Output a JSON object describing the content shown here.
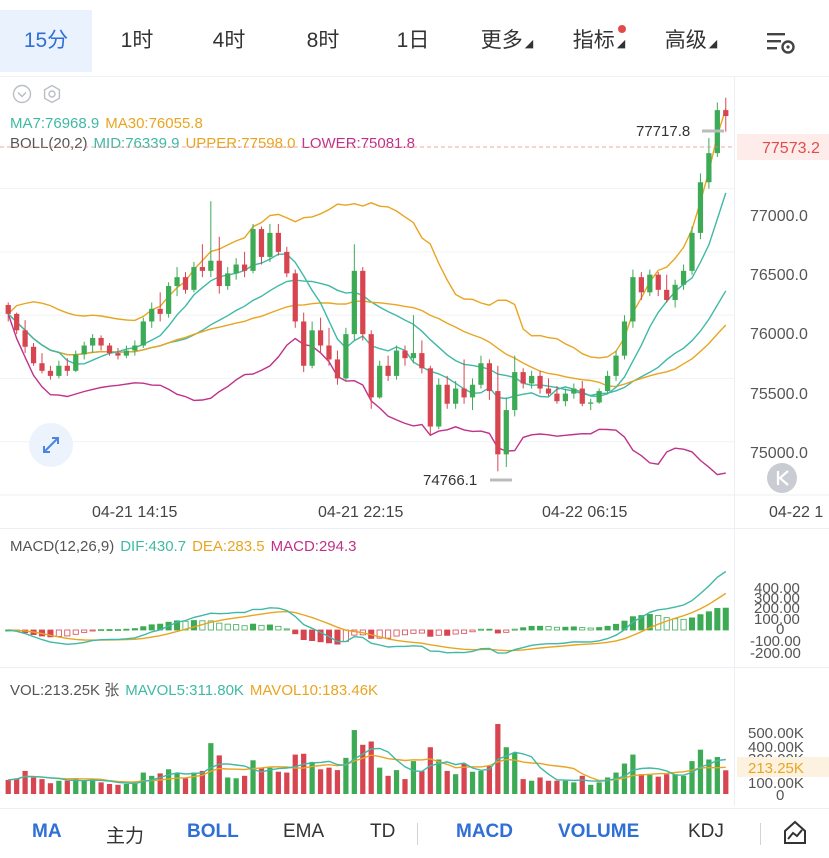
{
  "tabs": {
    "items": [
      "15分",
      "1时",
      "4时",
      "8时",
      "1日",
      "更多",
      "指标",
      "高级"
    ],
    "active": "15分"
  },
  "main": {
    "ma_legend": {
      "ma7": "MA7:76968.9",
      "ma30": "MA30:76055.8"
    },
    "boll_legend": {
      "name": "BOLL(20,2)",
      "mid": "MID:76339.9",
      "upper": "UPPER:77598.0",
      "lower": "LOWER:75081.8"
    },
    "price_axis": [
      "77000.0",
      "76500.0",
      "76000.0",
      "75500.0",
      "75000.0"
    ],
    "current_price": "77573.2",
    "high_label": "77717.8",
    "low_label": "74766.1",
    "time_axis": [
      "04-21 14:15",
      "04-21 22:15",
      "04-22 06:15",
      "04-22 1"
    ]
  },
  "macd": {
    "legend": {
      "name": "MACD(12,26,9)",
      "dif": "DIF:430.7",
      "dea": "DEA:283.5",
      "macd": "MACD:294.3"
    },
    "axis": [
      "400.00",
      "300.00",
      "200.00",
      "100.00",
      "0",
      "-100.00",
      "-200.00"
    ]
  },
  "volume": {
    "legend": {
      "vol": "VOL:213.25K 张",
      "mavol5": "MAVOL5:311.80K",
      "mavol10": "MAVOL10:183.46K"
    },
    "axis": [
      "500.00K",
      "400.00K",
      "300.00K",
      "213.25K",
      "100.00K",
      "0"
    ]
  },
  "bottom_bar": {
    "items": [
      "MA",
      "主力",
      "BOLL",
      "EMA",
      "TD",
      "MACD",
      "VOLUME",
      "KDJ"
    ],
    "active": [
      "MA",
      "BOLL",
      "MACD",
      "VOLUME"
    ]
  },
  "colors": {
    "up": "#3daa55",
    "down": "#d64550",
    "accent": "#2f6fd6",
    "ma7": "#3fb9a5",
    "ma30": "#e9a521",
    "lower": "#c0318a",
    "upper": "#e9a521",
    "price_tag": "#e24b4b"
  },
  "chart_data": {
    "type": "candlestick",
    "title": "",
    "price_range": [
      74650,
      77850
    ],
    "interval": "15m",
    "time_ticks": [
      "04-21 14:15",
      "04-21 22:15",
      "04-22 06:15"
    ],
    "candles": [
      [
        76080,
        76100,
        75950,
        76010
      ],
      [
        76010,
        76020,
        75850,
        75880
      ],
      [
        75880,
        75960,
        75700,
        75750
      ],
      [
        75750,
        75780,
        75600,
        75620
      ],
      [
        75620,
        75700,
        75540,
        75560
      ],
      [
        75560,
        75600,
        75490,
        75520
      ],
      [
        75520,
        75640,
        75500,
        75600
      ],
      [
        75600,
        75660,
        75520,
        75560
      ],
      [
        75560,
        75720,
        75550,
        75690
      ],
      [
        75690,
        75790,
        75650,
        75760
      ],
      [
        75760,
        75850,
        75700,
        75820
      ],
      [
        75820,
        75840,
        75720,
        75760
      ],
      [
        75760,
        75780,
        75680,
        75700
      ],
      [
        75700,
        75740,
        75650,
        75680
      ],
      [
        75680,
        75760,
        75660,
        75720
      ],
      [
        75720,
        75800,
        75680,
        75760
      ],
      [
        75760,
        75980,
        75740,
        75950
      ],
      [
        75950,
        76100,
        75900,
        76050
      ],
      [
        76050,
        76180,
        75950,
        76010
      ],
      [
        76010,
        76260,
        75980,
        76230
      ],
      [
        76230,
        76380,
        76150,
        76300
      ],
      [
        76300,
        76340,
        76170,
        76200
      ],
      [
        76200,
        76420,
        76180,
        76380
      ],
      [
        76380,
        76560,
        76300,
        76350
      ],
      [
        76350,
        76900,
        76300,
        76430
      ],
      [
        76430,
        76620,
        76170,
        76230
      ],
      [
        76230,
        76380,
        76200,
        76330
      ],
      [
        76330,
        76450,
        76280,
        76400
      ],
      [
        76400,
        76500,
        76300,
        76350
      ],
      [
        76350,
        76720,
        76330,
        76680
      ],
      [
        76680,
        76700,
        76400,
        76460
      ],
      [
        76460,
        76720,
        76420,
        76650
      ],
      [
        76650,
        76720,
        76470,
        76500
      ],
      [
        76500,
        76540,
        76300,
        76330
      ],
      [
        76330,
        76360,
        75900,
        75950
      ],
      [
        75950,
        76020,
        75550,
        75600
      ],
      [
        75600,
        75950,
        75580,
        75880
      ],
      [
        75880,
        75980,
        75700,
        75760
      ],
      [
        75760,
        75900,
        75600,
        75650
      ],
      [
        75650,
        75720,
        75450,
        75500
      ],
      [
        75500,
        75900,
        75480,
        75850
      ],
      [
        75850,
        76560,
        75800,
        76350
      ],
      [
        76350,
        76380,
        75800,
        75850
      ],
      [
        75850,
        75880,
        75260,
        75350
      ],
      [
        75350,
        75640,
        75340,
        75600
      ],
      [
        75600,
        75680,
        75480,
        75520
      ],
      [
        75520,
        75760,
        75490,
        75720
      ],
      [
        75720,
        75760,
        75600,
        75660
      ],
      [
        75660,
        76000,
        75620,
        75700
      ],
      [
        75700,
        75800,
        75540,
        75580
      ],
      [
        75580,
        75600,
        75050,
        75120
      ],
      [
        75120,
        75500,
        75100,
        75450
      ],
      [
        75450,
        75520,
        75260,
        75300
      ],
      [
        75300,
        75480,
        75260,
        75420
      ],
      [
        75420,
        75650,
        75300,
        75350
      ],
      [
        75350,
        75500,
        75250,
        75450
      ],
      [
        75450,
        75680,
        75420,
        75620
      ],
      [
        75620,
        75650,
        75330,
        75400
      ],
      [
        75400,
        75600,
        74766,
        74900
      ],
      [
        74900,
        75350,
        74800,
        75250
      ],
      [
        75250,
        75680,
        75200,
        75550
      ],
      [
        75550,
        75580,
        75420,
        75460
      ],
      [
        75460,
        75560,
        75420,
        75520
      ],
      [
        75520,
        75560,
        75380,
        75420
      ],
      [
        75420,
        75500,
        75360,
        75380
      ],
      [
        75380,
        75440,
        75300,
        75320
      ],
      [
        75320,
        75420,
        75280,
        75380
      ],
      [
        75380,
        75460,
        75340,
        75420
      ],
      [
        75420,
        75480,
        75280,
        75300
      ],
      [
        75300,
        75340,
        75250,
        75310
      ],
      [
        75310,
        75420,
        75300,
        75400
      ],
      [
        75400,
        75560,
        75380,
        75520
      ],
      [
        75520,
        75720,
        75480,
        75680
      ],
      [
        75680,
        76000,
        75650,
        75950
      ],
      [
        75950,
        76360,
        75900,
        76300
      ],
      [
        76300,
        76340,
        76120,
        76180
      ],
      [
        76180,
        76360,
        76150,
        76320
      ],
      [
        76320,
        76340,
        76150,
        76200
      ],
      [
        76200,
        76320,
        76100,
        76120
      ],
      [
        76120,
        76280,
        76060,
        76240
      ],
      [
        76240,
        76400,
        76200,
        76350
      ],
      [
        76350,
        76700,
        76320,
        76650
      ],
      [
        76650,
        77120,
        76600,
        77050
      ],
      [
        77050,
        77400,
        77000,
        77280
      ],
      [
        77280,
        77680,
        77250,
        77620
      ],
      [
        77620,
        77717.8,
        77450,
        77573.2
      ]
    ]
  }
}
